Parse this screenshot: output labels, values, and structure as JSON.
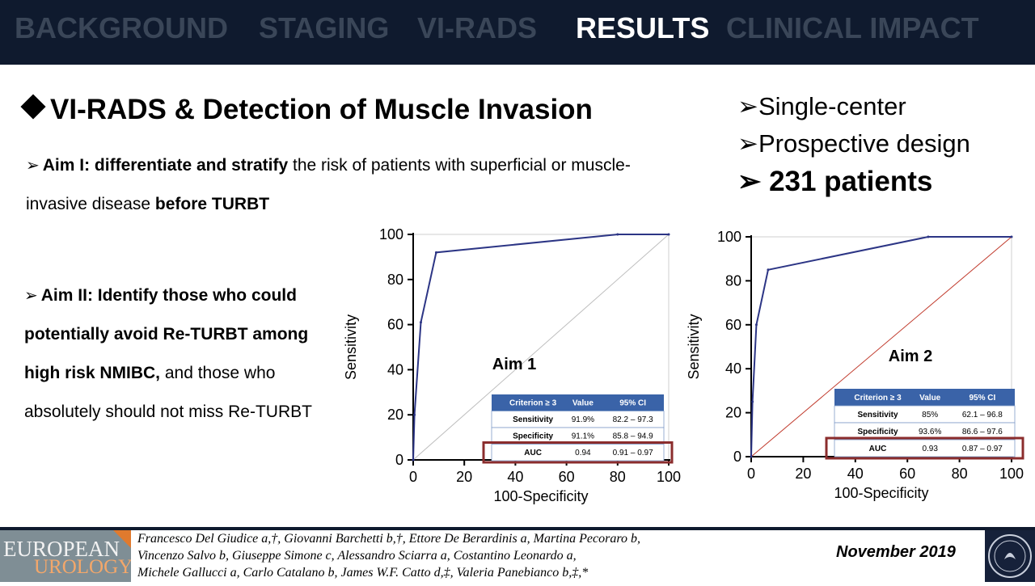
{
  "nav": {
    "tabs": [
      {
        "label": "BACKGROUND",
        "active": false
      },
      {
        "label": "STAGING",
        "active": false
      },
      {
        "label": "VI-RADS",
        "active": false
      },
      {
        "label": "RESULTS",
        "active": true
      },
      {
        "label": "CLINICAL IMPACT",
        "active": false
      }
    ]
  },
  "slide": {
    "title": "VI-RADS & Detection of Muscle Invasion",
    "aim1": {
      "bold1": "Aim I: differentiate and stratify",
      "text1": " the risk of patients with superficial or muscle-invasive disease ",
      "bold2": "before TURBT"
    },
    "aim2": {
      "bold": "Aim II: Identify those who could potentially avoid Re-TURBT among high risk NMIBC,",
      "text": " and those who absolutely should not miss Re-TURBT"
    },
    "bullets": [
      "Single-center",
      "Prospective design",
      "231 patients"
    ]
  },
  "footer": {
    "journal_line1": "EUROPEAN",
    "journal_line2": "UROLOGY",
    "authors_line1": "Francesco Del Giudice a,†, Giovanni Barchetti b,†, Ettore De Berardinis a, Martina Pecoraro b,",
    "authors_line2": "Vincenzo Salvo b, Giuseppe Simone c, Alessandro Sciarra a, Costantino Leonardo a,",
    "authors_line3": "Michele Gallucci a, Carlo Catalano b, James W.F. Catto d,‡, Valeria Panebianco b,‡,*",
    "date": "November 2019"
  },
  "colors": {
    "roc_line": "#2c3585",
    "table_header": "#3a63a8",
    "auc_box": "#8b2d2d",
    "nav_bg": "#0f1a2e",
    "nav_inactive": "#3a4658"
  },
  "chart_data": [
    {
      "type": "line",
      "annotation": "Aim 1",
      "xlabel": "100-Specificity",
      "ylabel": "Sensitivity",
      "xlim": [
        0,
        100
      ],
      "ylim": [
        0,
        100
      ],
      "ticks": [
        0,
        20,
        40,
        60,
        80,
        100
      ],
      "series": [
        {
          "x": [
            0,
            0.5,
            3,
            9,
            80,
            100
          ],
          "y": [
            0,
            20,
            61,
            92,
            100,
            100
          ]
        }
      ],
      "reference_line": {
        "x": [
          0,
          100
        ],
        "y": [
          0,
          100
        ],
        "color": "#bdbdbd"
      },
      "table": {
        "headers": [
          "Criterion ≥ 3",
          "Value",
          "95% CI"
        ],
        "rows": [
          [
            "Sensitivity",
            "91.9%",
            "82.2 – 97.3"
          ],
          [
            "Specificity",
            "91.1%",
            "85.8 – 94.9"
          ],
          [
            "AUC",
            "0.94",
            "0.91 – 0.97"
          ]
        ]
      }
    },
    {
      "type": "line",
      "annotation": "Aim 2",
      "xlabel": "100-Specificity",
      "ylabel": "Sensitivity",
      "xlim": [
        0,
        100
      ],
      "ylim": [
        0,
        100
      ],
      "ticks": [
        0,
        20,
        40,
        60,
        80,
        100
      ],
      "series": [
        {
          "x": [
            0,
            0.5,
            2,
            6.5,
            68,
            100
          ],
          "y": [
            0,
            25,
            60,
            85,
            100,
            100
          ]
        }
      ],
      "reference_line": {
        "x": [
          0,
          100
        ],
        "y": [
          0,
          100
        ],
        "color": "#c0392b"
      },
      "table": {
        "headers": [
          "Criterion ≥ 3",
          "Value",
          "95% CI"
        ],
        "rows": [
          [
            "Sensitivity",
            "85%",
            "62.1 – 96.8"
          ],
          [
            "Specificity",
            "93.6%",
            "86.6 – 97.6"
          ],
          [
            "AUC",
            "0.93",
            "0.87 – 0.97"
          ]
        ]
      }
    }
  ]
}
